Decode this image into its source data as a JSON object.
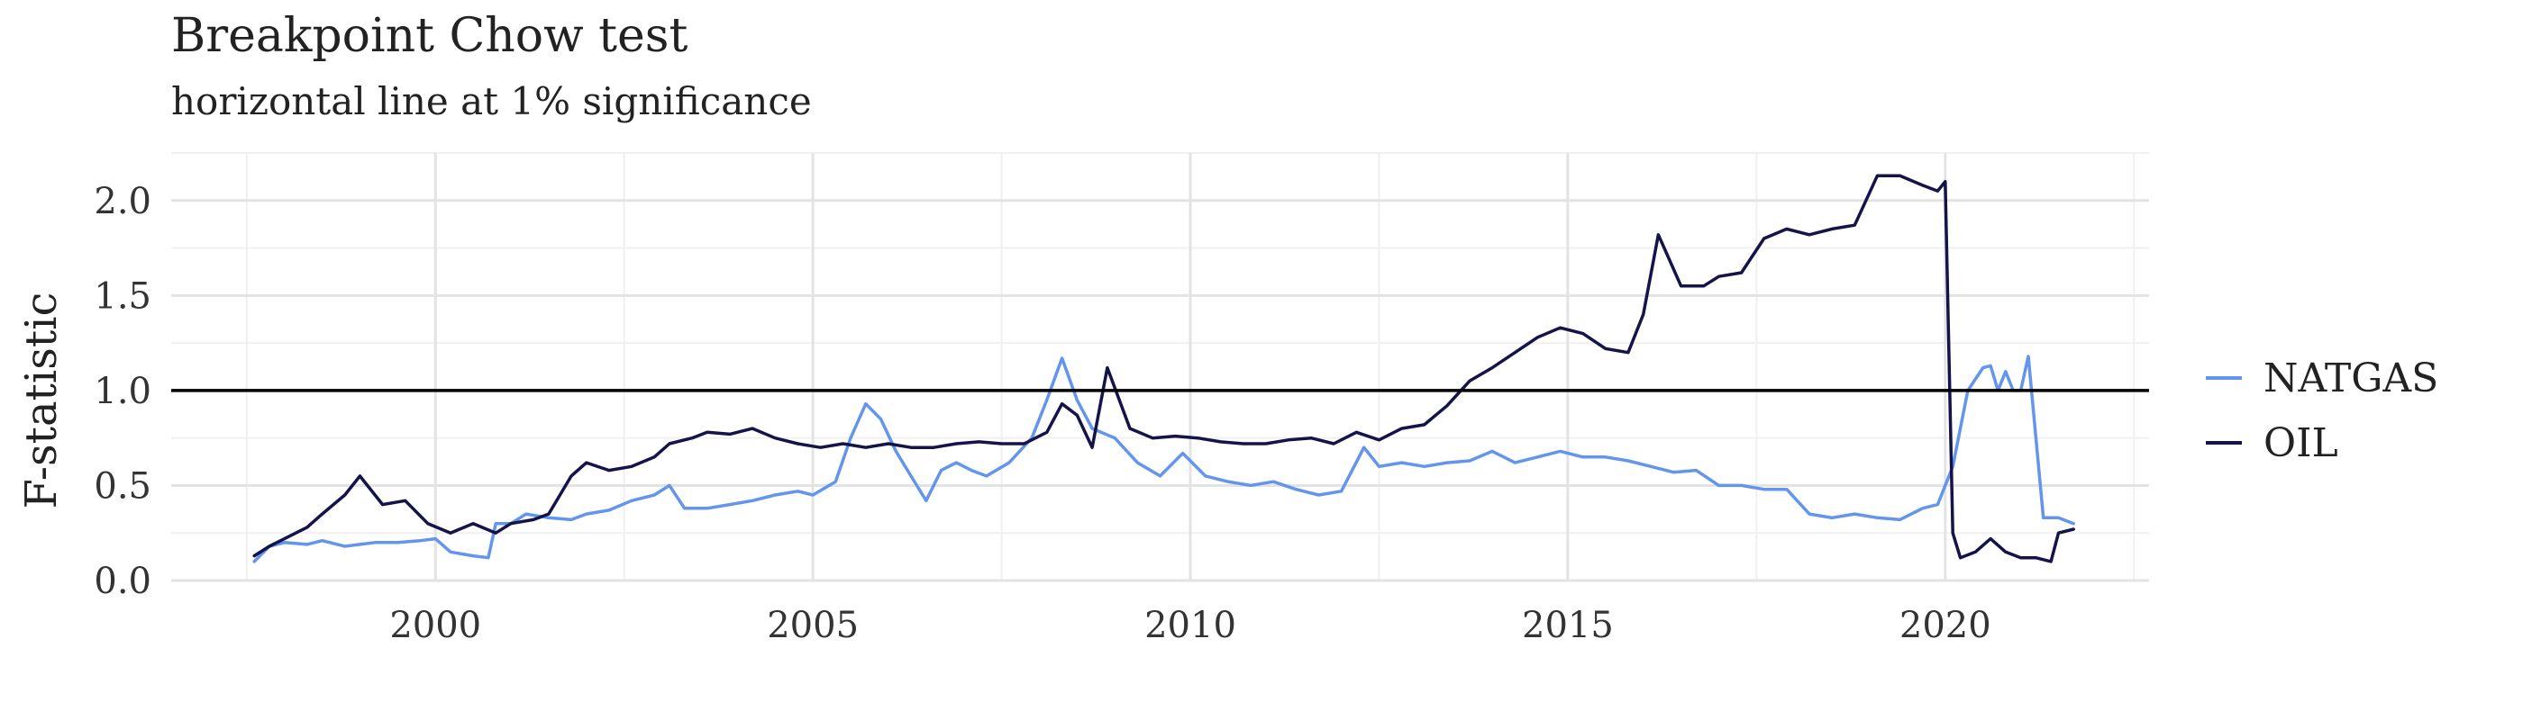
{
  "chart_data": {
    "type": "line",
    "title": "Breakpoint Chow test",
    "subtitle": "horizontal line at 1% significance",
    "xlabel": "",
    "ylabel": "F-statistic",
    "xlim": [
      1996.5,
      2022.7
    ],
    "ylim": [
      0,
      2.25
    ],
    "x_ticks": [
      2000,
      2005,
      2010,
      2015,
      2020
    ],
    "y_ticks": [
      0.0,
      0.5,
      1.0,
      1.5,
      2.0
    ],
    "x_tick_labels": [
      "2000",
      "2005",
      "2010",
      "2015",
      "2020"
    ],
    "y_tick_labels": [
      "0.0",
      "0.5",
      "1.0",
      "1.5",
      "2.0"
    ],
    "grid": true,
    "legend_position": "right",
    "reference_line": {
      "y": 1.0,
      "color": "#000000"
    },
    "series": [
      {
        "name": "NATGAS",
        "color": "#6495ED",
        "x": [
          1997.6,
          1997.8,
          1998.0,
          1998.3,
          1998.5,
          1998.8,
          1999.0,
          1999.2,
          1999.5,
          1999.8,
          2000.0,
          2000.2,
          2000.5,
          2000.7,
          2000.8,
          2001.0,
          2001.2,
          2001.5,
          2001.8,
          2002.0,
          2002.3,
          2002.6,
          2002.9,
          2003.1,
          2003.3,
          2003.6,
          2003.9,
          2004.2,
          2004.5,
          2004.8,
          2005.0,
          2005.3,
          2005.5,
          2005.7,
          2005.9,
          2006.1,
          2006.3,
          2006.5,
          2006.7,
          2006.9,
          2007.1,
          2007.3,
          2007.6,
          2007.9,
          2008.1,
          2008.3,
          2008.5,
          2008.7,
          2009.0,
          2009.3,
          2009.6,
          2009.9,
          2010.2,
          2010.5,
          2010.8,
          2011.1,
          2011.4,
          2011.7,
          2012.0,
          2012.3,
          2012.5,
          2012.8,
          2013.1,
          2013.4,
          2013.7,
          2014.0,
          2014.3,
          2014.6,
          2014.9,
          2015.2,
          2015.5,
          2015.8,
          2016.1,
          2016.4,
          2016.7,
          2017.0,
          2017.3,
          2017.6,
          2017.9,
          2018.2,
          2018.5,
          2018.8,
          2019.1,
          2019.4,
          2019.7,
          2019.9,
          2020.1,
          2020.3,
          2020.5,
          2020.6,
          2020.7,
          2020.8,
          2020.9,
          2021.0,
          2021.1,
          2021.3,
          2021.5,
          2021.7
        ],
        "y": [
          0.1,
          0.18,
          0.2,
          0.19,
          0.21,
          0.18,
          0.19,
          0.2,
          0.2,
          0.21,
          0.22,
          0.15,
          0.13,
          0.12,
          0.3,
          0.3,
          0.35,
          0.33,
          0.32,
          0.35,
          0.37,
          0.42,
          0.45,
          0.5,
          0.38,
          0.38,
          0.4,
          0.42,
          0.45,
          0.47,
          0.45,
          0.52,
          0.75,
          0.93,
          0.85,
          0.68,
          0.55,
          0.42,
          0.58,
          0.62,
          0.58,
          0.55,
          0.62,
          0.75,
          0.95,
          1.17,
          0.95,
          0.8,
          0.75,
          0.62,
          0.55,
          0.67,
          0.55,
          0.52,
          0.5,
          0.52,
          0.48,
          0.45,
          0.47,
          0.7,
          0.6,
          0.62,
          0.6,
          0.62,
          0.63,
          0.68,
          0.62,
          0.65,
          0.68,
          0.65,
          0.65,
          0.63,
          0.6,
          0.57,
          0.58,
          0.5,
          0.5,
          0.48,
          0.48,
          0.35,
          0.33,
          0.35,
          0.33,
          0.32,
          0.38,
          0.4,
          0.6,
          1.0,
          1.12,
          1.13,
          1.0,
          1.1,
          1.0,
          1.0,
          1.18,
          0.33,
          0.33,
          0.3
        ],
        "values": [
          0.1,
          0.18,
          0.2,
          0.19,
          0.21,
          0.18,
          0.19,
          0.2,
          0.2,
          0.21,
          0.22,
          0.15,
          0.13,
          0.12,
          0.3,
          0.3,
          0.35,
          0.33,
          0.32,
          0.35,
          0.37,
          0.42,
          0.45,
          0.5,
          0.38,
          0.38,
          0.4,
          0.42,
          0.45,
          0.47,
          0.45,
          0.52,
          0.75,
          0.93,
          0.85,
          0.68,
          0.55,
          0.42,
          0.58,
          0.62,
          0.58,
          0.55,
          0.62,
          0.75,
          0.95,
          1.17,
          0.95,
          0.8,
          0.75,
          0.62,
          0.55,
          0.67,
          0.55,
          0.52,
          0.5,
          0.52,
          0.48,
          0.45,
          0.47,
          0.7,
          0.6,
          0.62,
          0.6,
          0.62,
          0.63,
          0.68,
          0.62,
          0.65,
          0.68,
          0.65,
          0.65,
          0.63,
          0.6,
          0.57,
          0.58,
          0.5,
          0.5,
          0.48,
          0.48,
          0.35,
          0.33,
          0.35,
          0.33,
          0.32,
          0.38,
          0.4,
          0.6,
          1.0,
          1.12,
          1.13,
          1.0,
          1.1,
          1.0,
          1.0,
          1.18,
          0.33,
          0.33,
          0.3
        ]
      },
      {
        "name": "OIL",
        "color": "#14134A",
        "x": [
          1997.6,
          1997.8,
          1998.0,
          1998.3,
          1998.5,
          1998.8,
          1999.0,
          1999.3,
          1999.6,
          1999.9,
          2000.2,
          2000.5,
          2000.8,
          2001.0,
          2001.3,
          2001.5,
          2001.8,
          2002.0,
          2002.3,
          2002.6,
          2002.9,
          2003.1,
          2003.4,
          2003.6,
          2003.9,
          2004.2,
          2004.5,
          2004.8,
          2005.1,
          2005.4,
          2005.7,
          2006.0,
          2006.3,
          2006.6,
          2006.9,
          2007.2,
          2007.5,
          2007.8,
          2008.1,
          2008.3,
          2008.5,
          2008.7,
          2008.9,
          2009.2,
          2009.5,
          2009.8,
          2010.1,
          2010.4,
          2010.7,
          2011.0,
          2011.3,
          2011.6,
          2011.9,
          2012.2,
          2012.5,
          2012.8,
          2013.1,
          2013.4,
          2013.7,
          2014.0,
          2014.3,
          2014.6,
          2014.9,
          2015.2,
          2015.5,
          2015.8,
          2016.0,
          2016.2,
          2016.5,
          2016.8,
          2017.0,
          2017.3,
          2017.6,
          2017.9,
          2018.2,
          2018.5,
          2018.8,
          2019.1,
          2019.4,
          2019.7,
          2019.9,
          2020.0,
          2020.1,
          2020.2,
          2020.4,
          2020.6,
          2020.8,
          2021.0,
          2021.2,
          2021.4,
          2021.5,
          2021.7
        ],
        "y": [
          0.13,
          0.18,
          0.22,
          0.28,
          0.35,
          0.45,
          0.55,
          0.4,
          0.42,
          0.3,
          0.25,
          0.3,
          0.25,
          0.3,
          0.32,
          0.35,
          0.55,
          0.62,
          0.58,
          0.6,
          0.65,
          0.72,
          0.75,
          0.78,
          0.77,
          0.8,
          0.75,
          0.72,
          0.7,
          0.72,
          0.7,
          0.72,
          0.7,
          0.7,
          0.72,
          0.73,
          0.72,
          0.72,
          0.78,
          0.93,
          0.87,
          0.7,
          1.12,
          0.8,
          0.75,
          0.76,
          0.75,
          0.73,
          0.72,
          0.72,
          0.74,
          0.75,
          0.72,
          0.78,
          0.74,
          0.8,
          0.82,
          0.92,
          1.05,
          1.12,
          1.2,
          1.28,
          1.33,
          1.3,
          1.22,
          1.2,
          1.4,
          1.82,
          1.55,
          1.55,
          1.6,
          1.62,
          1.8,
          1.85,
          1.82,
          1.85,
          1.87,
          2.13,
          2.13,
          2.08,
          2.05,
          2.1,
          0.25,
          0.12,
          0.15,
          0.22,
          0.15,
          0.12,
          0.12,
          0.1,
          0.25,
          0.27
        ],
        "values": [
          0.13,
          0.18,
          0.22,
          0.28,
          0.35,
          0.45,
          0.55,
          0.4,
          0.42,
          0.3,
          0.25,
          0.3,
          0.25,
          0.3,
          0.32,
          0.35,
          0.55,
          0.62,
          0.58,
          0.6,
          0.65,
          0.72,
          0.75,
          0.78,
          0.77,
          0.8,
          0.75,
          0.72,
          0.7,
          0.72,
          0.7,
          0.72,
          0.7,
          0.7,
          0.72,
          0.73,
          0.72,
          0.72,
          0.78,
          0.93,
          0.87,
          0.7,
          1.12,
          0.8,
          0.75,
          0.76,
          0.75,
          0.73,
          0.72,
          0.72,
          0.74,
          0.75,
          0.72,
          0.78,
          0.74,
          0.8,
          0.82,
          0.92,
          1.05,
          1.12,
          1.2,
          1.28,
          1.33,
          1.3,
          1.22,
          1.2,
          1.4,
          1.82,
          1.55,
          1.55,
          1.6,
          1.62,
          1.8,
          1.85,
          1.82,
          1.85,
          1.87,
          2.13,
          2.13,
          2.08,
          2.05,
          2.1,
          0.25,
          0.12,
          0.15,
          0.22,
          0.15,
          0.12,
          0.12,
          0.1,
          0.25,
          0.27
        ]
      }
    ]
  }
}
